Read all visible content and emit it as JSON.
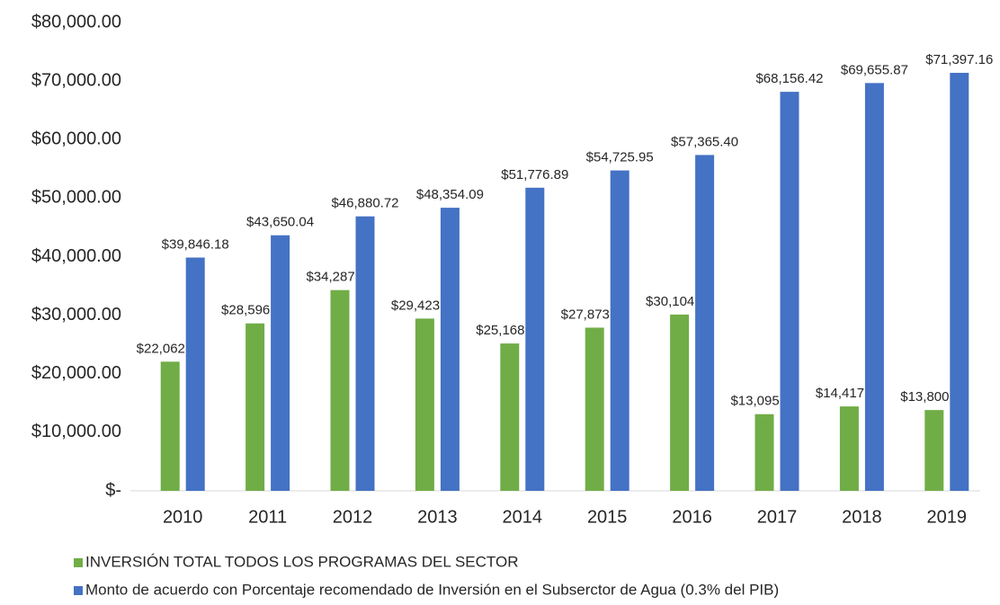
{
  "chart_data": {
    "type": "bar",
    "categories": [
      "2010",
      "2011",
      "2012",
      "2013",
      "2014",
      "2015",
      "2016",
      "2017",
      "2018",
      "2019"
    ],
    "series": [
      {
        "name": "INVERSIÓN TOTAL TODOS LOS PROGRAMAS DEL SECTOR",
        "color": "#70ad47",
        "values": [
          22062.4,
          28596.8,
          34287.9,
          29423.4,
          25168.0,
          27873.8,
          30104.3,
          13095.26,
          14417.41,
          13800.0
        ],
        "value_labels": [
          "$22,062.40",
          "$28,596.80",
          "$34,287.90",
          "$29,423.40",
          "$25,168.00",
          "$27,873.80",
          "$30,104.30",
          "$13,095.26",
          "$14,417.41",
          "$13,800.00"
        ]
      },
      {
        "name": "Monto de acuerdo con Porcentaje recomendado de Inversión en el Subserctor de Agua (0.3% del PIB)",
        "color": "#4472c4",
        "values": [
          39846.18,
          43650.04,
          46880.72,
          48354.09,
          51776.89,
          54725.95,
          57365.4,
          68156.42,
          69655.87,
          71397.16
        ],
        "value_labels": [
          "$39,846.18",
          "$43,650.04",
          "$46,880.72",
          "$48,354.09",
          "$51,776.89",
          "$54,725.95",
          "$57,365.40",
          "$68,156.42",
          "$69,655.87",
          "$71,397.16"
        ]
      }
    ],
    "ylim": [
      0,
      80000
    ],
    "yticks": [
      {
        "value": 0,
        "label": "$-"
      },
      {
        "value": 10000,
        "label": "$10,000.00"
      },
      {
        "value": 20000,
        "label": "$20,000.00"
      },
      {
        "value": 30000,
        "label": "$30,000.00"
      },
      {
        "value": 40000,
        "label": "$40,000.00"
      },
      {
        "value": 50000,
        "label": "$50,000.00"
      },
      {
        "value": 60000,
        "label": "$60,000.00"
      },
      {
        "value": 70000,
        "label": "$70,000.00"
      },
      {
        "value": 80000,
        "label": "$80,000.00"
      }
    ],
    "grid": false,
    "legend": "bottom"
  }
}
